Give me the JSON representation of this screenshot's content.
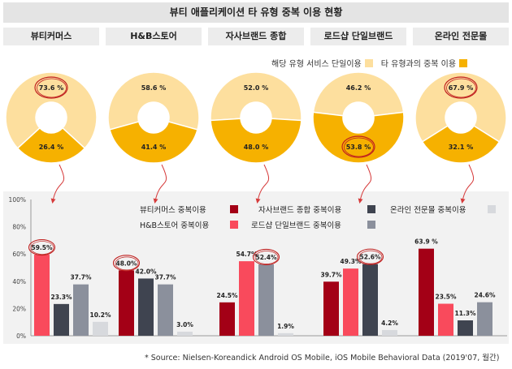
{
  "title": "뷰티 애플리케이션 타 유형 중복 이용 현황",
  "categories": [
    "뷰티커머스",
    "H&B스토어",
    "자사브랜드 종합",
    "로드샵 단일브랜드",
    "온라인 전문몰"
  ],
  "legend_top": {
    "single": "해당 유형 서비스 단일이용",
    "overlap": "타 유형과의 중복 이용"
  },
  "colors": {
    "single": "#fddf9e",
    "overlap": "#f6b100",
    "highlight_circle": "#c0201f",
    "arrow": "#d63a3a",
    "beauty_commerce": "#a30016",
    "hb_store": "#f94a5c",
    "brand_total": "#3f4450",
    "roadshop": "#8b909c",
    "online_mall": "#d7d9dd"
  },
  "source": "* Source: Nielsen-Koreandick Android OS Mobile, iOS Mobile Behavioral Data (2019'07, 월간)",
  "chart_data": [
    {
      "type": "pie",
      "variant": "donut",
      "title": "",
      "groups": [
        {
          "category": "뷰티커머스",
          "single": 73.6,
          "overlap": 26.4,
          "single_label": "73.6 %",
          "overlap_label": "26.4 %",
          "highlight": "single"
        },
        {
          "category": "H&B스토어",
          "single": 58.6,
          "overlap": 41.4,
          "single_label": "58.6 %",
          "overlap_label": "41.4 %",
          "highlight": null
        },
        {
          "category": "자사브랜드 종합",
          "single": 52.0,
          "overlap": 48.0,
          "single_label": "52.0 %",
          "overlap_label": "48.0 %",
          "highlight": null
        },
        {
          "category": "로드샵 단일브랜드",
          "single": 46.2,
          "overlap": 53.8,
          "single_label": "46.2 %",
          "overlap_label": "53.8 %",
          "highlight": "overlap"
        },
        {
          "category": "온라인 전문몰",
          "single": 67.9,
          "overlap": 32.1,
          "single_label": "67.9 %",
          "overlap_label": "32.1 %",
          "highlight": "single"
        }
      ]
    },
    {
      "type": "bar",
      "title": "",
      "xlabel": "",
      "ylabel": "",
      "ylim": [
        0,
        100
      ],
      "yticks": [
        "0%",
        "20%",
        "40%",
        "60%",
        "80%",
        "100%"
      ],
      "grid": false,
      "legend": [
        {
          "name": "뷰티커머스 중복이용",
          "key": "beauty_commerce"
        },
        {
          "name": "자사브랜드 종합 중복이용",
          "key": "brand_total"
        },
        {
          "name": "온라인 전문몰 중복이용",
          "key": "online_mall"
        },
        {
          "name": "H&B스토어 중복이용",
          "key": "hb_store"
        },
        {
          "name": "로드샵 단일브랜드 중복이용",
          "key": "roadshop"
        }
      ],
      "series_order": [
        "beauty_commerce",
        "hb_store",
        "brand_total",
        "roadshop",
        "online_mall"
      ],
      "groups": [
        {
          "category": "뷰티커머스",
          "bars": [
            {
              "series": "hb_store",
              "value": 59.5,
              "label": "59.5%",
              "highlight": true
            },
            {
              "series": "brand_total",
              "value": 23.3,
              "label": "23.3%",
              "highlight": false
            },
            {
              "series": "roadshop",
              "value": 37.7,
              "label": "37.7%",
              "highlight": false
            },
            {
              "series": "online_mall",
              "value": 10.2,
              "label": "10.2%",
              "highlight": false
            }
          ]
        },
        {
          "category": "H&B스토어",
          "bars": [
            {
              "series": "beauty_commerce",
              "value": 48.0,
              "label": "48.0%",
              "highlight": true
            },
            {
              "series": "brand_total",
              "value": 42.0,
              "label": "42.0%",
              "highlight": false
            },
            {
              "series": "roadshop",
              "value": 37.7,
              "label": "37.7%",
              "highlight": false
            },
            {
              "series": "online_mall",
              "value": 3.0,
              "label": "3.0%",
              "highlight": false
            }
          ]
        },
        {
          "category": "자사브랜드 종합",
          "bars": [
            {
              "series": "beauty_commerce",
              "value": 24.5,
              "label": "24.5%",
              "highlight": false
            },
            {
              "series": "hb_store",
              "value": 54.7,
              "label": "54.7%",
              "highlight": false
            },
            {
              "series": "roadshop",
              "value": 52.4,
              "label": "52.4%",
              "highlight": true
            },
            {
              "series": "online_mall",
              "value": 1.9,
              "label": "1.9%",
              "highlight": false
            }
          ]
        },
        {
          "category": "로드샵 단일브랜드",
          "bars": [
            {
              "series": "beauty_commerce",
              "value": 39.7,
              "label": "39.7%",
              "highlight": false
            },
            {
              "series": "hb_store",
              "value": 49.3,
              "label": "49.3%",
              "highlight": false
            },
            {
              "series": "brand_total",
              "value": 52.6,
              "label": "52.6%",
              "highlight": true
            },
            {
              "series": "online_mall",
              "value": 4.2,
              "label": "4.2%",
              "highlight": false
            }
          ]
        },
        {
          "category": "온라인 전문몰",
          "bars": [
            {
              "series": "beauty_commerce",
              "value": 63.9,
              "label": "63.9 %",
              "highlight": false
            },
            {
              "series": "hb_store",
              "value": 23.5,
              "label": "23.5%",
              "highlight": false
            },
            {
              "series": "brand_total",
              "value": 11.3,
              "label": "11.3%",
              "highlight": false
            },
            {
              "series": "roadshop",
              "value": 24.6,
              "label": "24.6%",
              "highlight": false
            }
          ]
        }
      ]
    }
  ]
}
